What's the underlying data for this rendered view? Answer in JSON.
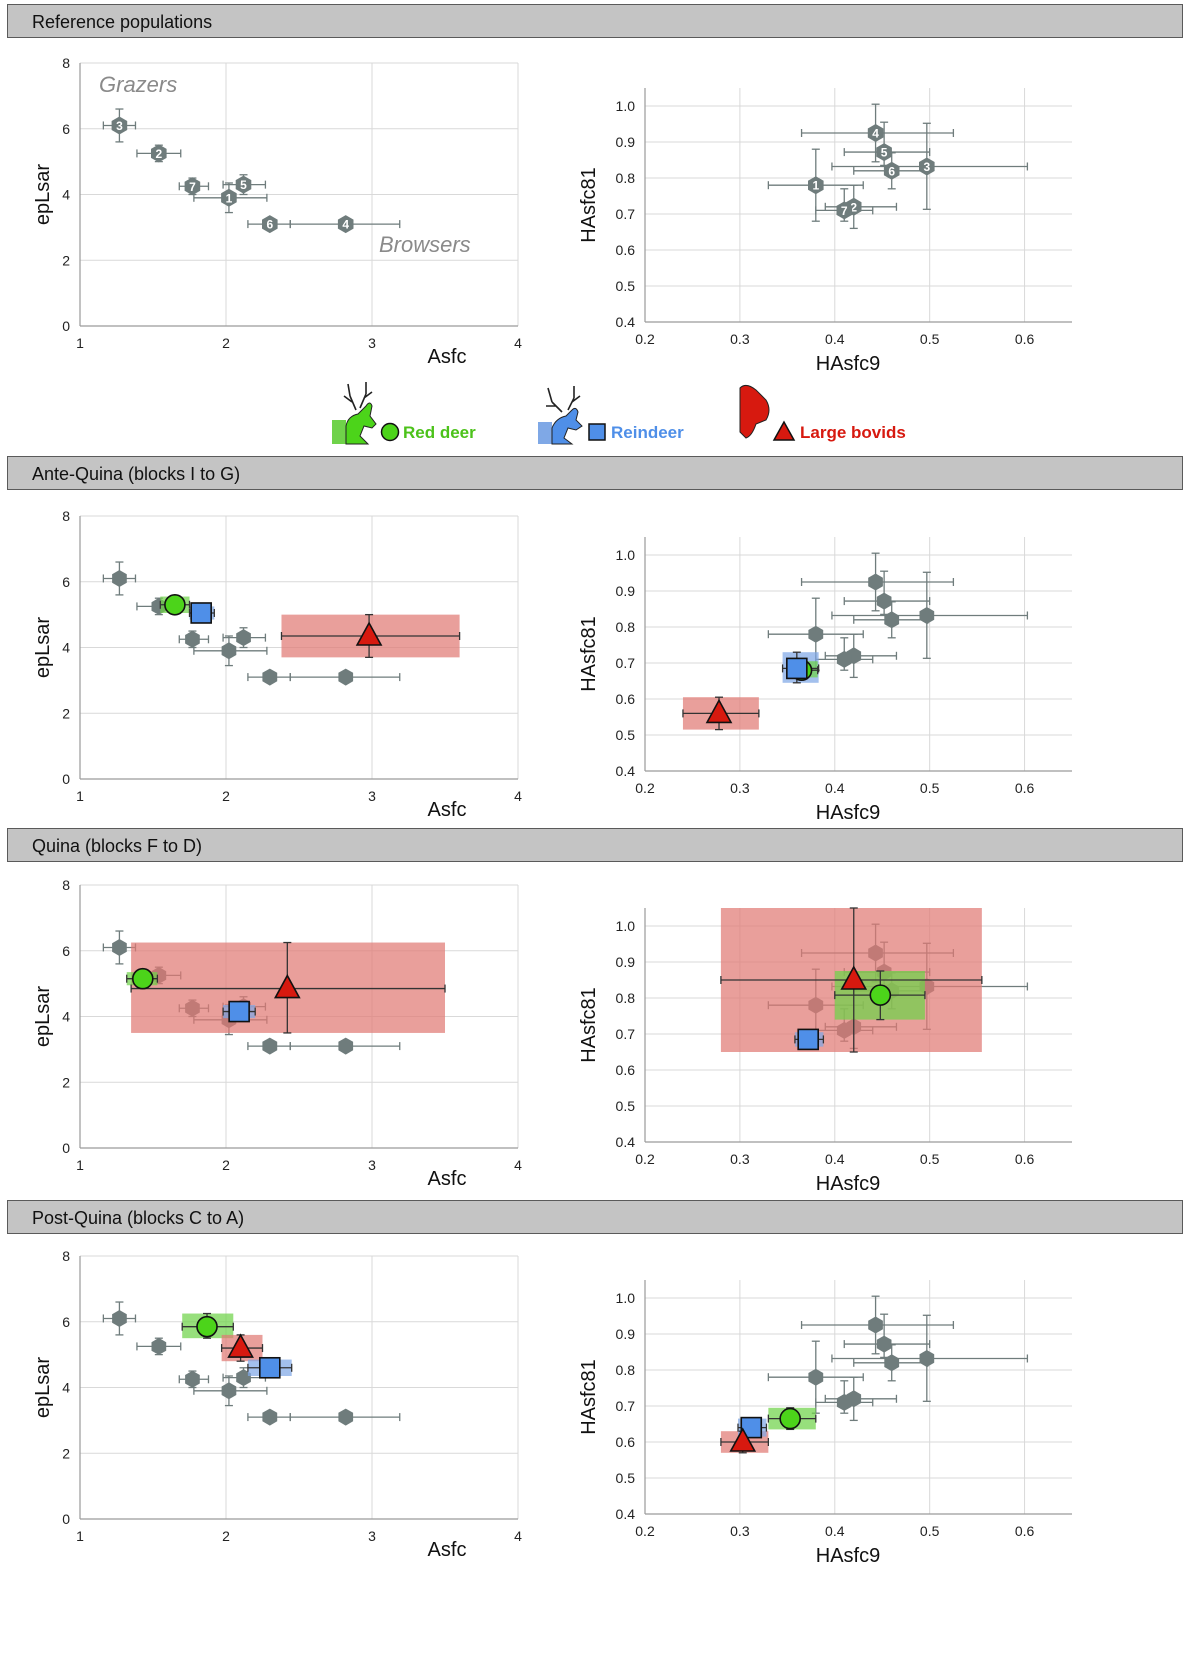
{
  "sections": [
    {
      "title": "Reference populations"
    },
    {
      "title": "Ante-Quina (blocks I to G)"
    },
    {
      "title": "Quina (blocks F to D)"
    },
    {
      "title": "Post-Quina  (blocks C to A)"
    }
  ],
  "legend": {
    "red_deer": "Red deer",
    "reindeer": "Reindeer",
    "large_bovids": "Large bovids"
  },
  "annotations": {
    "grazers": "Grazers",
    "browsers": "Browsers"
  },
  "colors": {
    "reference": "#6f7c7c",
    "red_deer": "#4cd41a",
    "red_deer_box": "#6fd24a",
    "reindeer": "#4f8fe8",
    "reindeer_box": "#7fa8e6",
    "large_bovids": "#d7190f",
    "large_bovids_box": "#e07a74"
  },
  "chart_data": [
    {
      "type": "scatter",
      "title": "Reference populations — epLsar vs Asfc",
      "xlabel": "Asfc",
      "ylabel": "epLsar",
      "xlim": [
        1,
        4
      ],
      "ylim": [
        0,
        8
      ],
      "xticks": [
        1,
        2,
        3,
        4
      ],
      "yticks": [
        0,
        2,
        4,
        6,
        8
      ],
      "grid": true,
      "reference": [
        {
          "label": "1",
          "x": 2.02,
          "y": 3.9,
          "xerr": [
            1.78,
            2.28
          ],
          "yerr": [
            3.45,
            4.35
          ]
        },
        {
          "label": "2",
          "x": 1.54,
          "y": 5.25,
          "xerr": [
            1.39,
            1.69
          ],
          "yerr": [
            5.0,
            5.5
          ]
        },
        {
          "label": "3",
          "x": 1.27,
          "y": 6.1,
          "xerr": [
            1.16,
            1.38
          ],
          "yerr": [
            5.6,
            6.6
          ]
        },
        {
          "label": "4",
          "x": 2.82,
          "y": 3.1,
          "xerr": [
            2.44,
            3.19
          ],
          "yerr": [
            2.95,
            3.25
          ]
        },
        {
          "label": "5",
          "x": 2.12,
          "y": 4.3,
          "xerr": [
            1.98,
            2.27
          ],
          "yerr": [
            4.0,
            4.6
          ]
        },
        {
          "label": "6",
          "x": 2.3,
          "y": 3.1,
          "xerr": [
            2.15,
            2.44
          ],
          "yerr": [
            2.95,
            3.25
          ]
        },
        {
          "label": "7",
          "x": 1.77,
          "y": 4.25,
          "xerr": [
            1.68,
            1.88
          ],
          "yerr": [
            4.0,
            4.5
          ]
        }
      ]
    },
    {
      "type": "scatter",
      "title": "Reference populations — HAsfc81 vs HAsfc9",
      "xlabel": "HAsfc9",
      "ylabel": "HAsfc81",
      "xlim": [
        0.2,
        0.65
      ],
      "ylim": [
        0.4,
        1.05
      ],
      "xticks": [
        0.2,
        0.3,
        0.4,
        0.5,
        0.6
      ],
      "yticks": [
        0.4,
        0.5,
        0.6,
        0.7,
        0.8,
        0.9,
        1.0
      ],
      "grid": true,
      "reference": [
        {
          "label": "1",
          "x": 0.38,
          "y": 0.78,
          "xerr": [
            0.33,
            0.43
          ],
          "yerr": [
            0.68,
            0.88
          ]
        },
        {
          "label": "2",
          "x": 0.42,
          "y": 0.72,
          "xerr": [
            0.39,
            0.465
          ],
          "yerr": [
            0.66,
            0.78
          ]
        },
        {
          "label": "3",
          "x": 0.497,
          "y": 0.832,
          "xerr": [
            0.397,
            0.603
          ],
          "yerr": [
            0.713,
            0.952
          ]
        },
        {
          "label": "4",
          "x": 0.443,
          "y": 0.925,
          "xerr": [
            0.365,
            0.525
          ],
          "yerr": [
            0.845,
            1.005
          ]
        },
        {
          "label": "5",
          "x": 0.452,
          "y": 0.872,
          "xerr": [
            0.41,
            0.5
          ],
          "yerr": [
            0.835,
            0.955
          ]
        },
        {
          "label": "6",
          "x": 0.46,
          "y": 0.82,
          "xerr": [
            0.42,
            0.498
          ],
          "yerr": [
            0.77,
            0.87
          ]
        },
        {
          "label": "7",
          "x": 0.41,
          "y": 0.71,
          "xerr": [
            0.38,
            0.44
          ],
          "yerr": [
            0.68,
            0.77
          ]
        }
      ]
    },
    {
      "type": "scatter",
      "title": "Ante-Quina — epLsar vs Asfc",
      "xlabel": "Asfc",
      "ylabel": "epLsar",
      "xlim": [
        1,
        4
      ],
      "ylim": [
        0,
        8
      ],
      "xticks": [
        1,
        2,
        3,
        4
      ],
      "yticks": [
        0,
        2,
        4,
        6,
        8
      ],
      "grid": true,
      "series": [
        {
          "name": "Red deer",
          "x": 1.65,
          "y": 5.3,
          "xerr": [
            1.55,
            1.75
          ],
          "yerr": [
            5.05,
            5.55
          ]
        },
        {
          "name": "Reindeer",
          "x": 1.83,
          "y": 5.05,
          "xerr": [
            1.75,
            1.92
          ],
          "yerr": [
            4.85,
            5.25
          ]
        },
        {
          "name": "Large bovids",
          "x": 2.98,
          "y": 4.35,
          "xerr": [
            2.38,
            3.6
          ],
          "yerr": [
            3.7,
            5.0
          ]
        }
      ]
    },
    {
      "type": "scatter",
      "title": "Ante-Quina — HAsfc81 vs HAsfc9",
      "xlabel": "HAsfc9",
      "ylabel": "HAsfc81",
      "xlim": [
        0.2,
        0.65
      ],
      "ylim": [
        0.4,
        1.05
      ],
      "xticks": [
        0.2,
        0.3,
        0.4,
        0.5,
        0.6
      ],
      "yticks": [
        0.4,
        0.5,
        0.6,
        0.7,
        0.8,
        0.9,
        1.0
      ],
      "grid": true,
      "series": [
        {
          "name": "Red deer",
          "x": 0.365,
          "y": 0.68,
          "xerr": [
            0.35,
            0.382
          ],
          "yerr": [
            0.66,
            0.705
          ]
        },
        {
          "name": "Reindeer",
          "x": 0.36,
          "y": 0.685,
          "xerr": [
            0.345,
            0.383
          ],
          "yerr": [
            0.645,
            0.73
          ]
        },
        {
          "name": "Large bovids",
          "x": 0.278,
          "y": 0.56,
          "xerr": [
            0.24,
            0.32
          ],
          "yerr": [
            0.515,
            0.605
          ]
        }
      ]
    },
    {
      "type": "scatter",
      "title": "Quina — epLsar vs Asfc",
      "xlabel": "Asfc",
      "ylabel": "epLsar",
      "xlim": [
        1,
        4
      ],
      "ylim": [
        0,
        8
      ],
      "xticks": [
        1,
        2,
        3,
        4
      ],
      "yticks": [
        0,
        2,
        4,
        6,
        8
      ],
      "grid": true,
      "series": [
        {
          "name": "Red deer",
          "x": 1.43,
          "y": 5.15,
          "xerr": [
            1.32,
            1.53
          ],
          "yerr": [
            4.95,
            5.35
          ]
        },
        {
          "name": "Reindeer",
          "x": 2.09,
          "y": 4.15,
          "xerr": [
            1.98,
            2.2
          ],
          "yerr": [
            3.95,
            4.35
          ]
        },
        {
          "name": "Large bovids",
          "x": 2.42,
          "y": 4.85,
          "xerr": [
            1.35,
            3.5
          ],
          "yerr": [
            3.5,
            6.25
          ]
        }
      ]
    },
    {
      "type": "scatter",
      "title": "Quina — HAsfc81 vs HAsfc9",
      "xlabel": "HAsfc9",
      "ylabel": "HAsfc81",
      "xlim": [
        0.2,
        0.65
      ],
      "ylim": [
        0.4,
        1.05
      ],
      "xticks": [
        0.2,
        0.3,
        0.4,
        0.5,
        0.6
      ],
      "yticks": [
        0.4,
        0.5,
        0.6,
        0.7,
        0.8,
        0.9,
        1.0
      ],
      "grid": true,
      "series": [
        {
          "name": "Red deer",
          "x": 0.448,
          "y": 0.808,
          "xerr": [
            0.4,
            0.495
          ],
          "yerr": [
            0.74,
            0.875
          ]
        },
        {
          "name": "Reindeer",
          "x": 0.372,
          "y": 0.685,
          "xerr": [
            0.358,
            0.388
          ],
          "yerr": [
            0.665,
            0.705
          ]
        },
        {
          "name": "Large bovids",
          "x": 0.42,
          "y": 0.85,
          "xerr": [
            0.28,
            0.555
          ],
          "yerr": [
            0.65,
            1.05
          ]
        }
      ]
    },
    {
      "type": "scatter",
      "title": "Post-Quina — epLsar vs Asfc",
      "xlabel": "Asfc",
      "ylabel": "epLsar",
      "xlim": [
        1,
        4
      ],
      "ylim": [
        0,
        8
      ],
      "xticks": [
        1,
        2,
        3,
        4
      ],
      "yticks": [
        0,
        2,
        4,
        6,
        8
      ],
      "grid": true,
      "series": [
        {
          "name": "Red deer",
          "x": 1.87,
          "y": 5.85,
          "xerr": [
            1.7,
            2.05
          ],
          "yerr": [
            5.5,
            6.25
          ]
        },
        {
          "name": "Reindeer",
          "x": 2.3,
          "y": 4.6,
          "xerr": [
            2.15,
            2.45
          ],
          "yerr": [
            4.35,
            4.85
          ]
        },
        {
          "name": "Large bovids",
          "x": 2.1,
          "y": 5.2,
          "xerr": [
            1.97,
            2.25
          ],
          "yerr": [
            4.8,
            5.6
          ]
        }
      ]
    },
    {
      "type": "scatter",
      "title": "Post-Quina — HAsfc81 vs HAsfc9",
      "xlabel": "HAsfc9",
      "ylabel": "HAsfc81",
      "xlim": [
        0.2,
        0.65
      ],
      "ylim": [
        0.4,
        1.05
      ],
      "xticks": [
        0.2,
        0.3,
        0.4,
        0.5,
        0.6
      ],
      "yticks": [
        0.4,
        0.5,
        0.6,
        0.7,
        0.8,
        0.9,
        1.0
      ],
      "grid": true,
      "series": [
        {
          "name": "Red deer",
          "x": 0.353,
          "y": 0.665,
          "xerr": [
            0.33,
            0.38
          ],
          "yerr": [
            0.635,
            0.695
          ]
        },
        {
          "name": "Reindeer",
          "x": 0.312,
          "y": 0.64,
          "xerr": [
            0.298,
            0.328
          ],
          "yerr": [
            0.615,
            0.665
          ]
        },
        {
          "name": "Large bovids",
          "x": 0.303,
          "y": 0.6,
          "xerr": [
            0.28,
            0.33
          ],
          "yerr": [
            0.57,
            0.63
          ]
        }
      ]
    }
  ]
}
